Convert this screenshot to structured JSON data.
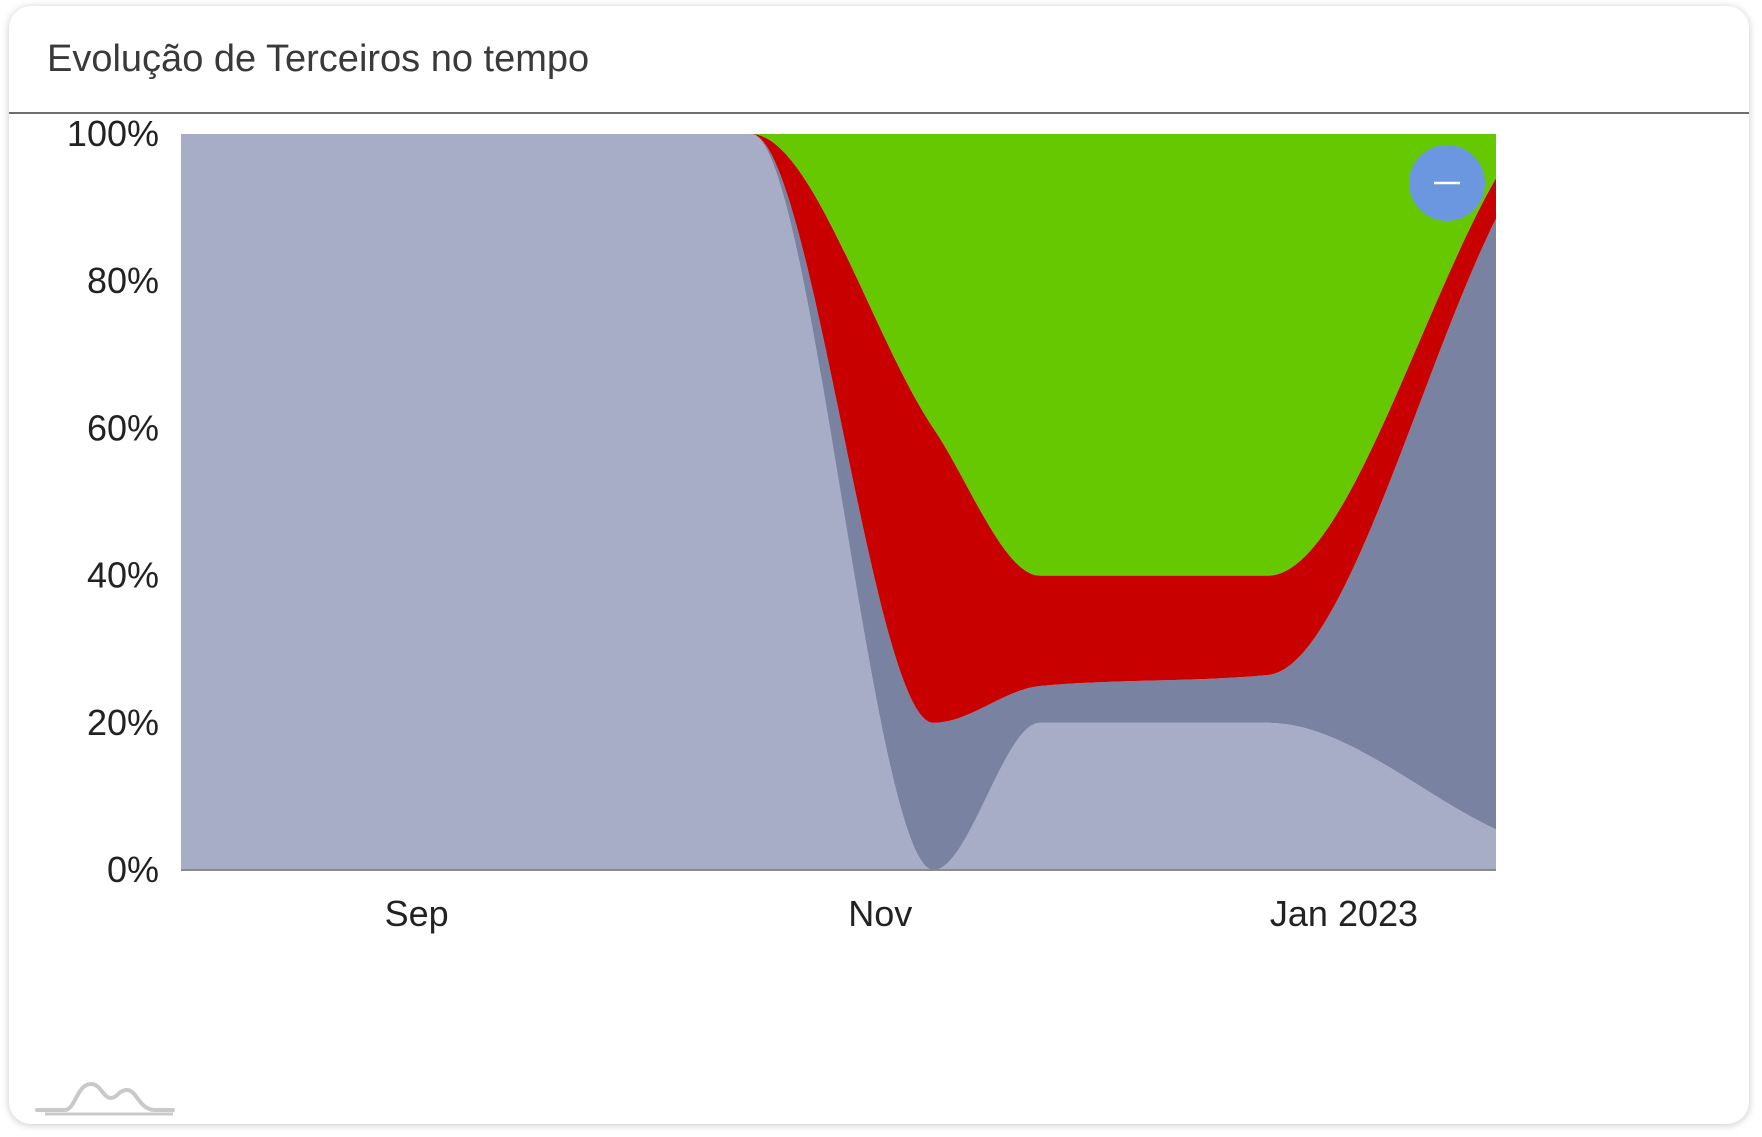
{
  "card": {
    "title": "Evolução de Terceiros no tempo"
  },
  "colors": {
    "light_slate": "#a8adc7",
    "dark_slate": "#7a82a1",
    "red": "#c80000",
    "green": "#66c800",
    "zoom_button": "#6b97e0"
  },
  "chart_data": {
    "type": "area",
    "stacked": true,
    "normalized": true,
    "x": [
      "2022-08-01",
      "2022-09-01",
      "2022-10-01",
      "2022-10-15",
      "2022-11-08",
      "2022-11-22",
      "2022-12-22",
      "2023-01-21"
    ],
    "series": [
      {
        "color": "#a8adc7",
        "values": [
          100,
          100,
          100,
          100,
          0,
          20,
          20,
          5.5
        ]
      },
      {
        "color": "#7a82a1",
        "values": [
          0,
          0,
          0,
          0,
          20,
          5,
          6.5,
          83
        ]
      },
      {
        "color": "#c80000",
        "values": [
          0,
          0,
          0,
          0,
          40,
          15,
          13.5,
          5.5
        ]
      },
      {
        "color": "#66c800",
        "values": [
          0,
          0,
          0,
          0,
          40,
          60,
          60,
          6
        ]
      }
    ],
    "x_ticks": [
      {
        "date": "2022-09-01",
        "label": "Sep"
      },
      {
        "date": "2022-11-01",
        "label": "Nov"
      },
      {
        "date": "2023-01-01",
        "label": "Jan 2023"
      }
    ],
    "y_ticks": [
      "0%",
      "20%",
      "40%",
      "60%",
      "80%",
      "100%"
    ],
    "ylim": [
      0,
      100
    ],
    "xlim": [
      "2022-08-01",
      "2023-01-21"
    ],
    "grid": false,
    "zoom_button_icon": "minus-icon"
  }
}
